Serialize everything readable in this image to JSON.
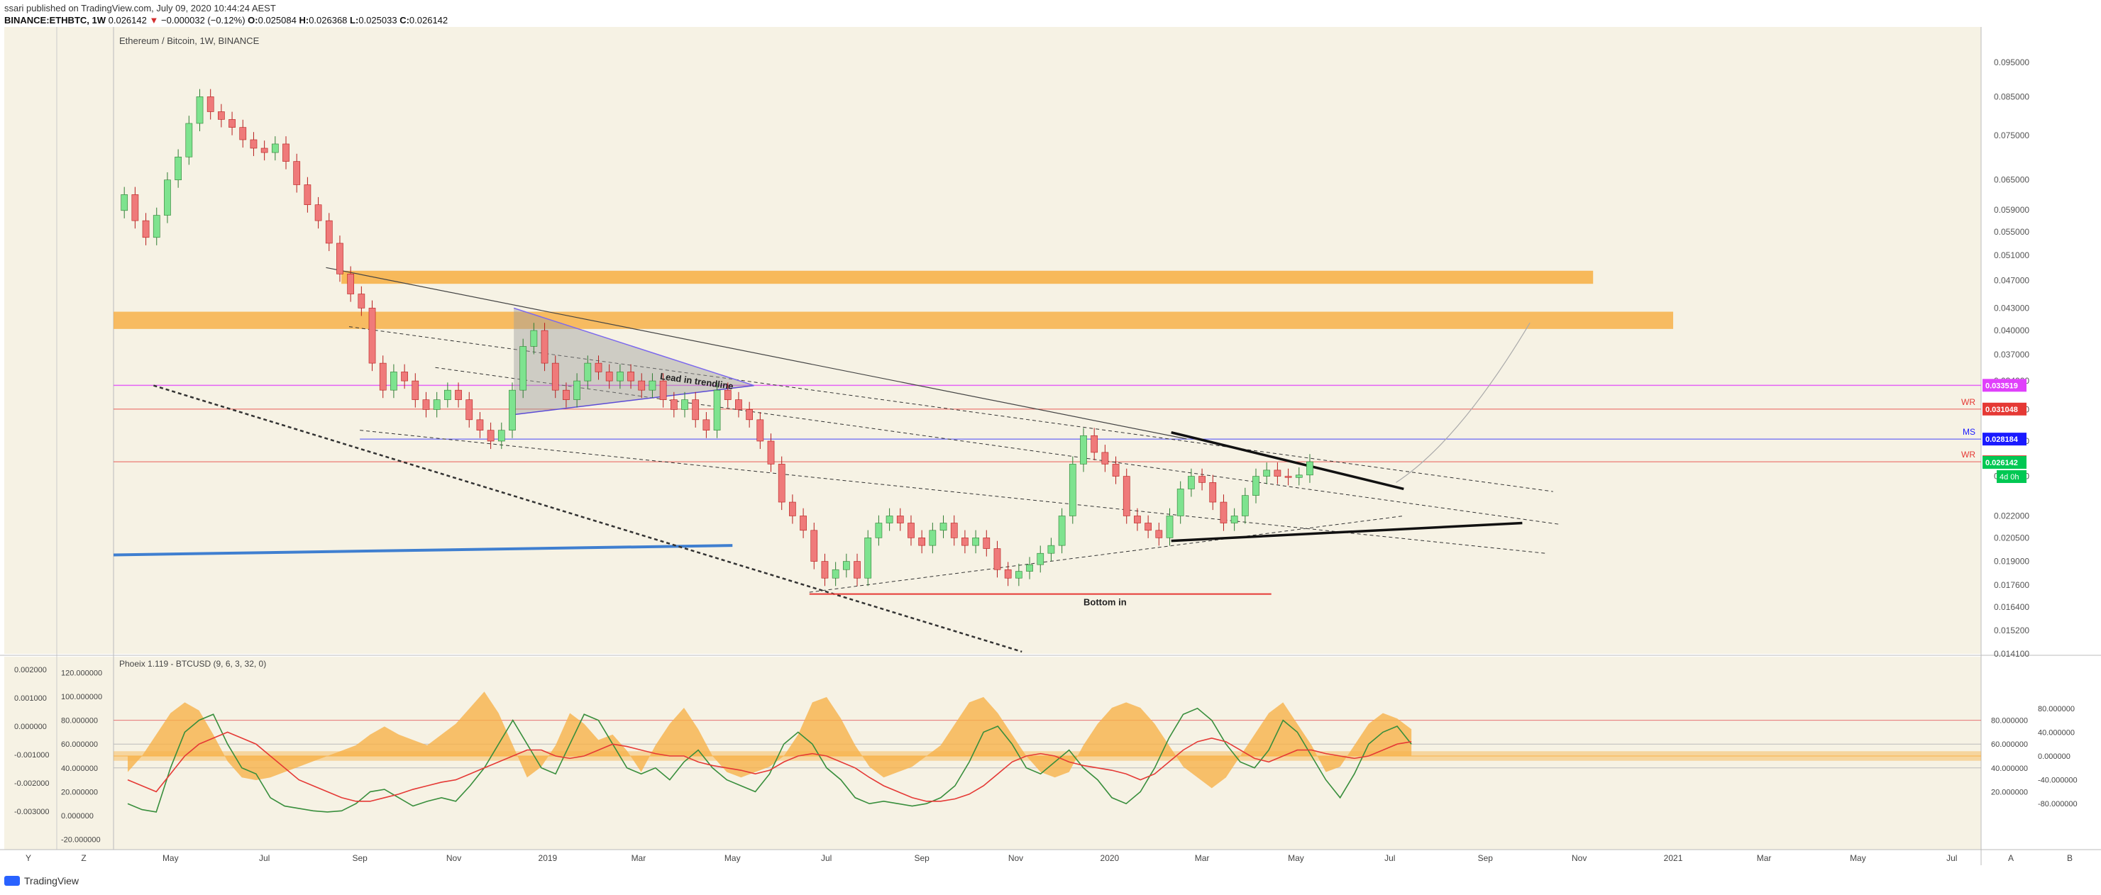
{
  "header": {
    "published_by": "ssari published on TradingView.com, July 09, 2020 10:44:24 AEST",
    "symbol": "BINANCE:ETHBTC, 1W",
    "last": "0.026142",
    "change": "−0.000032 (−0.12%)",
    "o_label": "O:",
    "o": "0.025084",
    "h_label": "H:",
    "h": "0.026368",
    "l_label": "L:",
    "l": "0.025033",
    "c_label": "C:",
    "c": "0.026142"
  },
  "footer": {
    "brand": "TradingView"
  },
  "colors": {
    "bull": "#7ee38f",
    "bear": "#ef7a7a",
    "band": "#f7b24a",
    "background": "#f6f2e4",
    "magenta": "#e040fb",
    "wr_red": "#e53935"
  },
  "chart_data": [
    {
      "type": "candlestick",
      "title": "Ethereum / Bitcoin, 1W, BINANCE",
      "scale": "log",
      "ylim": [
        0.0141,
        0.105
      ],
      "x_range": [
        "2018-03-25",
        "2021-07-20"
      ],
      "x_tick_labels": [
        {
          "date": "2018-05-01",
          "label": "May"
        },
        {
          "date": "2018-07-01",
          "label": "Jul"
        },
        {
          "date": "2018-09-01",
          "label": "Sep"
        },
        {
          "date": "2018-11-01",
          "label": "Nov"
        },
        {
          "date": "2019-01-01",
          "label": "2019"
        },
        {
          "date": "2019-03-01",
          "label": "Mar"
        },
        {
          "date": "2019-05-01",
          "label": "May"
        },
        {
          "date": "2019-07-01",
          "label": "Jul"
        },
        {
          "date": "2019-09-01",
          "label": "Sep"
        },
        {
          "date": "2019-11-01",
          "label": "Nov"
        },
        {
          "date": "2020-01-01",
          "label": "2020"
        },
        {
          "date": "2020-03-01",
          "label": "Mar"
        },
        {
          "date": "2020-05-01",
          "label": "May"
        },
        {
          "date": "2020-07-01",
          "label": "Jul"
        },
        {
          "date": "2020-09-01",
          "label": "Sep"
        },
        {
          "date": "2020-11-01",
          "label": "Nov"
        },
        {
          "date": "2021-01-01",
          "label": "2021"
        },
        {
          "date": "2021-03-01",
          "label": "Mar"
        },
        {
          "date": "2021-05-01",
          "label": "May"
        },
        {
          "date": "2021-07-01",
          "label": "Jul"
        }
      ],
      "y_tick_labels": [
        "0.095000",
        "0.085000",
        "0.075000",
        "0.065000",
        "0.059000",
        "0.055000",
        "0.051000",
        "0.047000",
        "0.043000",
        "0.040000",
        "0.037000",
        "0.034000",
        "0.031000",
        "0.028000",
        "0.025000",
        "0.022000",
        "0.020500",
        "0.019000",
        "0.017600",
        "0.016400",
        "0.015200",
        "0.014100"
      ],
      "y_tick_values": [
        0.095,
        0.085,
        0.075,
        0.065,
        0.059,
        0.055,
        0.051,
        0.047,
        0.043,
        0.04,
        0.037,
        0.034,
        0.031,
        0.028,
        0.025,
        0.022,
        0.0205,
        0.019,
        0.0176,
        0.0164,
        0.0152,
        0.0141
      ],
      "start_date": "2018-04-01",
      "closes": [
        0.062,
        0.057,
        0.054,
        0.058,
        0.065,
        0.07,
        0.078,
        0.085,
        0.081,
        0.079,
        0.077,
        0.074,
        0.072,
        0.071,
        0.073,
        0.069,
        0.064,
        0.06,
        0.057,
        0.053,
        0.048,
        0.045,
        0.043,
        0.036,
        0.033,
        0.035,
        0.034,
        0.032,
        0.031,
        0.032,
        0.033,
        0.032,
        0.03,
        0.029,
        0.028,
        0.029,
        0.033,
        0.038,
        0.04,
        0.036,
        0.033,
        0.032,
        0.034,
        0.036,
        0.035,
        0.034,
        0.035,
        0.034,
        0.033,
        0.034,
        0.032,
        0.031,
        0.032,
        0.03,
        0.029,
        0.033,
        0.032,
        0.031,
        0.03,
        0.028,
        0.026,
        0.023,
        0.022,
        0.021,
        0.019,
        0.018,
        0.0185,
        0.019,
        0.018,
        0.0205,
        0.0215,
        0.022,
        0.0215,
        0.0205,
        0.02,
        0.021,
        0.0215,
        0.0205,
        0.02,
        0.0205,
        0.0198,
        0.0185,
        0.018,
        0.0184,
        0.0188,
        0.0195,
        0.02,
        0.022,
        0.026,
        0.0285,
        0.027,
        0.026,
        0.025,
        0.022,
        0.0215,
        0.021,
        0.0205,
        0.022,
        0.024,
        0.025,
        0.0245,
        0.023,
        0.0215,
        0.022,
        0.0235,
        0.025,
        0.0255,
        0.025,
        0.0249,
        0.0251,
        0.0262
      ],
      "price_levels": [
        {
          "value": 0.033519,
          "label": "0.033519",
          "tag": "",
          "color": "#e040fb"
        },
        {
          "value": 0.031048,
          "label": "0.031048",
          "tag": "WR",
          "color": "#e53935"
        },
        {
          "value": 0.028184,
          "label": "0.028184",
          "tag": "MS",
          "color": "#1a1aff"
        },
        {
          "value": 0.026195,
          "label": "0.026195",
          "tag": "WR",
          "color": "#e53935"
        },
        {
          "value": 0.026142,
          "label": "0.026142",
          "tag": "",
          "color": "#00c853"
        }
      ],
      "countdown": "4d 0h",
      "annotations": [
        "Lead in trendline",
        "Bottom in"
      ]
    },
    {
      "type": "line",
      "title": "Phoeix 1.119 - BTCUSD (9, 6, 3, 32, 0)",
      "left_axis_labels": [
        "0.002000",
        "0.001000",
        "0.000000",
        "-0.001000",
        "-0.002000",
        "-0.003000"
      ],
      "left_axis_values": [
        0.002,
        0.001,
        0,
        -0.001,
        -0.002,
        -0.003
      ],
      "inner_axis_labels": [
        "120.000000",
        "100.000000",
        "80.000000",
        "60.000000",
        "40.000000",
        "20.000000",
        "0.000000",
        "-20.000000"
      ],
      "inner_axis_values": [
        120,
        100,
        80,
        60,
        40,
        20,
        0,
        -20
      ],
      "right_axis_a_labels": [
        "80.000000",
        "60.000000",
        "40.000000",
        "20.000000"
      ],
      "right_axis_a_values": [
        80,
        60,
        40,
        20
      ],
      "right_axis_b_labels": [
        "80.000000",
        "40.000000",
        "0.000000",
        "-40.000000",
        "-80.000000"
      ],
      "right_axis_b_values": [
        80,
        40,
        0,
        -40,
        -80
      ],
      "series": [
        {
          "color": "#388e3c",
          "values": [
            10,
            5,
            3,
            40,
            70,
            80,
            85,
            60,
            40,
            35,
            15,
            8,
            6,
            4,
            3,
            4,
            10,
            20,
            22,
            15,
            8,
            12,
            15,
            12,
            25,
            40,
            60,
            80,
            60,
            40,
            35,
            60,
            85,
            80,
            60,
            40,
            35,
            40,
            30,
            45,
            55,
            40,
            30,
            25,
            20,
            35,
            60,
            70,
            60,
            40,
            30,
            15,
            10,
            12,
            10,
            8,
            10,
            15,
            25,
            45,
            70,
            75,
            60,
            40,
            35,
            45,
            55,
            40,
            30,
            15,
            10,
            20,
            40,
            65,
            85,
            90,
            80,
            60,
            45,
            40,
            55,
            80,
            70,
            50,
            30,
            15,
            35,
            60,
            70,
            75,
            60
          ]
        },
        {
          "color": "#e53935",
          "values": [
            30,
            25,
            20,
            35,
            50,
            60,
            65,
            70,
            65,
            60,
            50,
            40,
            30,
            25,
            20,
            15,
            12,
            12,
            15,
            18,
            22,
            25,
            28,
            30,
            35,
            40,
            45,
            50,
            55,
            55,
            50,
            48,
            50,
            55,
            60,
            58,
            55,
            52,
            50,
            50,
            45,
            42,
            40,
            38,
            35,
            38,
            45,
            50,
            52,
            50,
            45,
            40,
            32,
            25,
            20,
            15,
            12,
            12,
            14,
            18,
            25,
            35,
            45,
            50,
            52,
            50,
            45,
            42,
            40,
            38,
            35,
            30,
            35,
            45,
            55,
            62,
            65,
            62,
            55,
            48,
            45,
            50,
            55,
            55,
            52,
            50,
            48,
            50,
            55,
            60,
            62
          ]
        },
        {
          "color": "#f7b24a",
          "values": [
            -30,
            0,
            40,
            80,
            100,
            85,
            40,
            -10,
            -40,
            -45,
            -40,
            -30,
            -20,
            -10,
            0,
            10,
            20,
            40,
            55,
            40,
            30,
            20,
            40,
            60,
            90,
            120,
            80,
            20,
            -40,
            -20,
            20,
            80,
            60,
            30,
            40,
            10,
            -30,
            20,
            60,
            90,
            50,
            0,
            -30,
            -40,
            -30,
            -20,
            0,
            40,
            100,
            110,
            70,
            20,
            -20,
            -40,
            -30,
            -20,
            0,
            20,
            60,
            100,
            110,
            80,
            40,
            0,
            -30,
            -40,
            -30,
            20,
            60,
            90,
            100,
            90,
            60,
            20,
            -20,
            -40,
            -60,
            -40,
            0,
            40,
            80,
            100,
            60,
            20,
            -30,
            -20,
            20,
            60,
            80,
            70,
            50
          ]
        }
      ]
    }
  ]
}
